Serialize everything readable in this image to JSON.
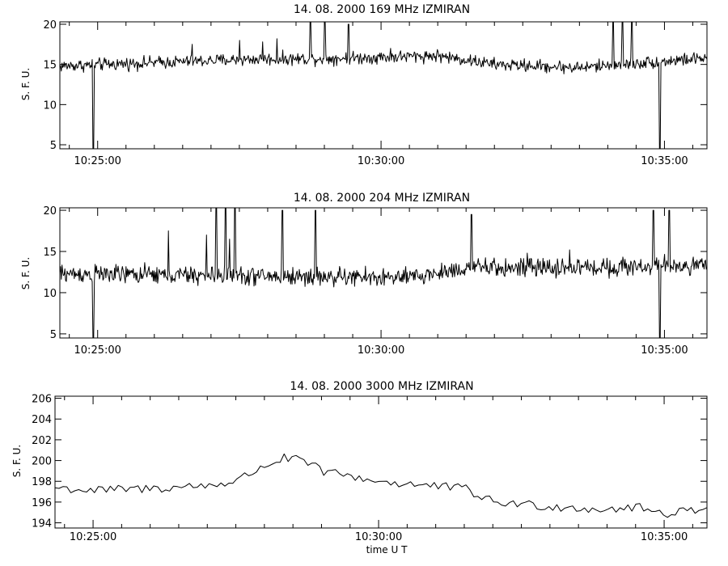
{
  "chart_data": [
    {
      "type": "line",
      "title": "14.  08.  2000    169 MHz    IZMIRAN",
      "ylabel": "S. F. U.",
      "xlabel": "",
      "xlim": [
        "10:24:20",
        "10:35:45"
      ],
      "ylim": [
        4.5,
        20.3
      ],
      "yticks": [
        5,
        10,
        15,
        20
      ],
      "xticks": [
        "10:25:00",
        "10:30:00",
        "10:35:00"
      ],
      "grid": false,
      "baseline": 15.0,
      "noise": 0.55,
      "drift": [
        [
          "10:24:20",
          14.8
        ],
        [
          "10:27:30",
          15.6
        ],
        [
          "10:29:30",
          15.8
        ],
        [
          "10:31:00",
          16.1
        ],
        [
          "10:32:00",
          15.0
        ],
        [
          "10:33:30",
          14.6
        ],
        [
          "10:35:45",
          15.8
        ]
      ],
      "x": [
        "10:24:55",
        "10:26:40",
        "10:27:30",
        "10:27:55",
        "10:28:10",
        "10:28:45",
        "10:29:00",
        "10:29:25",
        "10:30:10",
        "10:34:05",
        "10:34:15",
        "10:34:25",
        "10:34:55"
      ],
      "values": [
        4.5,
        17.5,
        18.0,
        17.8,
        18.2,
        20.3,
        20.3,
        20.0,
        17.0,
        20.3,
        20.3,
        20.3,
        4.5
      ]
    },
    {
      "type": "line",
      "title": "14.  08.  2000    204 MHz    IZMIRAN",
      "ylabel": "S. F. U.",
      "xlabel": "",
      "xlim": [
        "10:24:20",
        "10:35:45"
      ],
      "ylim": [
        4.5,
        20.3
      ],
      "yticks": [
        5,
        10,
        15,
        20
      ],
      "xticks": [
        "10:25:00",
        "10:30:00",
        "10:35:00"
      ],
      "grid": false,
      "baseline": 12.3,
      "noise": 0.8,
      "drift": [
        [
          "10:24:20",
          12.3
        ],
        [
          "10:30:30",
          11.8
        ],
        [
          "10:31:30",
          13.0
        ],
        [
          "10:33:00",
          13.0
        ],
        [
          "10:35:45",
          13.3
        ]
      ],
      "x": [
        "10:24:55",
        "10:26:15",
        "10:26:55",
        "10:27:05",
        "10:27:15",
        "10:27:20",
        "10:27:25",
        "10:28:15",
        "10:28:50",
        "10:31:35",
        "10:32:35",
        "10:33:20",
        "10:34:48",
        "10:34:55",
        "10:35:05"
      ],
      "values": [
        4.5,
        17.5,
        17.0,
        20.3,
        20.3,
        16.5,
        20.3,
        20.0,
        20.0,
        19.5,
        14.8,
        15.2,
        20.0,
        4.5,
        20.0
      ]
    },
    {
      "type": "line",
      "title": "14.  08.  2000     3000 MHz     IZMIRAN",
      "ylabel": "S. F. U.",
      "xlabel": "time   U T",
      "xlim": [
        "10:24:20",
        "10:35:45"
      ],
      "ylim": [
        193.5,
        206.2
      ],
      "yticks": [
        194,
        196,
        198,
        200,
        202,
        204,
        206
      ],
      "xticks": [
        "10:25:00",
        "10:30:00",
        "10:35:00"
      ],
      "grid": false,
      "noise": 0.45,
      "x": [
        "10:24:20",
        "10:25:00",
        "10:26:00",
        "10:27:00",
        "10:27:30",
        "10:28:00",
        "10:28:20",
        "10:28:40",
        "10:29:00",
        "10:30:00",
        "10:31:00",
        "10:31:30",
        "10:32:00",
        "10:33:00",
        "10:34:00",
        "10:34:30",
        "10:35:00",
        "10:35:45"
      ],
      "values": [
        197.4,
        197.1,
        197.3,
        197.6,
        198.0,
        199.5,
        200.2,
        200.0,
        199.0,
        198.0,
        197.5,
        197.3,
        196.0,
        195.6,
        195.3,
        195.5,
        194.9,
        195.5
      ]
    }
  ]
}
